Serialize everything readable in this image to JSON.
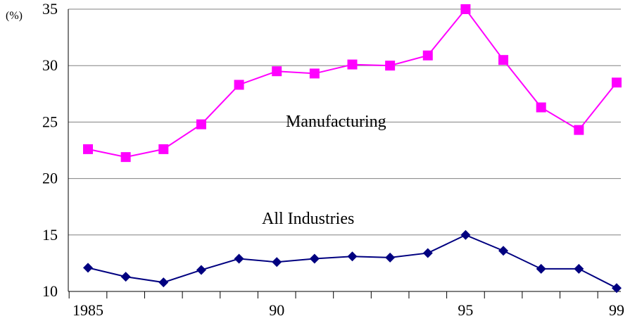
{
  "chart_data": {
    "type": "line",
    "title": "",
    "xlabel": "",
    "ylabel": "",
    "y_unit": "(%)",
    "x": [
      1985,
      1986,
      1987,
      1988,
      1989,
      1990,
      1991,
      1992,
      1993,
      1994,
      1995,
      1996,
      1997,
      1998,
      1999
    ],
    "x_tick_labels": [
      {
        "x": 1985,
        "label": "1985"
      },
      {
        "x": 1990,
        "label": "90"
      },
      {
        "x": 1995,
        "label": "95"
      },
      {
        "x": 1999,
        "label": "99"
      }
    ],
    "y_ticks": [
      10,
      15,
      20,
      25,
      30,
      35
    ],
    "ylim": [
      10,
      35
    ],
    "grid": "horizontal",
    "legend": "none (series labeled directly on plot)",
    "series": [
      {
        "name": "Manufacturing",
        "color": "#ff00ff",
        "marker": "square",
        "values": [
          22.6,
          21.9,
          22.6,
          24.8,
          28.3,
          29.5,
          29.3,
          30.1,
          30.0,
          30.9,
          35.0,
          30.5,
          26.3,
          24.3,
          28.5
        ]
      },
      {
        "name": "All Industries",
        "color": "#000080",
        "marker": "diamond",
        "values": [
          12.1,
          11.3,
          10.8,
          11.9,
          12.9,
          12.6,
          12.9,
          13.1,
          13.0,
          13.4,
          15.0,
          13.6,
          12.0,
          12.0,
          10.3
        ]
      }
    ]
  }
}
